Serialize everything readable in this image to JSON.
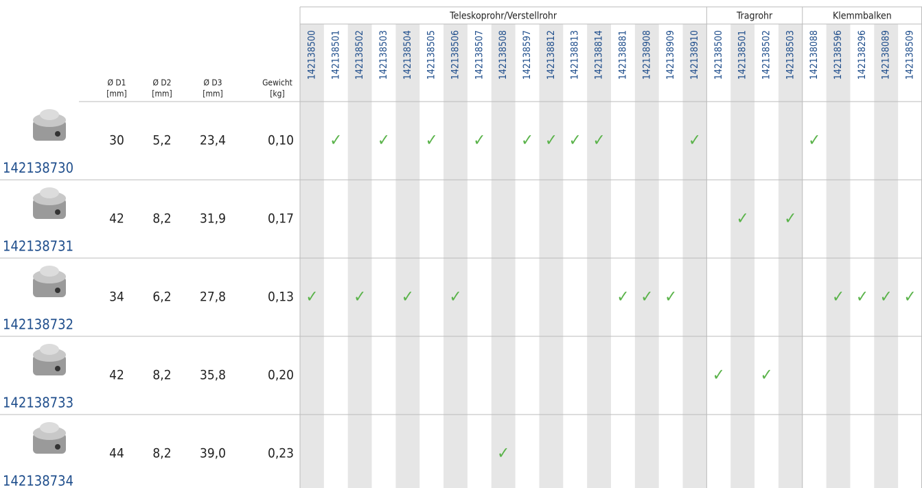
{
  "header": {
    "columns": [
      {
        "label": "Ø D1",
        "unit": "[mm]"
      },
      {
        "label": "Ø D2",
        "unit": "[mm]"
      },
      {
        "label": "Ø D3",
        "unit": "[mm]"
      },
      {
        "label": "Gewicht",
        "unit": "[kg]"
      }
    ],
    "groups": [
      {
        "label": "Teleskoprohr/Verstellrohr",
        "codes": [
          "142138500",
          "142138501",
          "142138502",
          "142138503",
          "142138504",
          "142138505",
          "142138506",
          "142138507",
          "142138508",
          "142138597",
          "142138812",
          "142138813",
          "142138814",
          "142138881",
          "142138908",
          "142138909",
          "142138910"
        ]
      },
      {
        "label": "Tragrohr",
        "codes": [
          "142138500",
          "142138501",
          "142138502",
          "142138503"
        ]
      },
      {
        "label": "Klemmbalken",
        "codes": [
          "142138088",
          "142138596",
          "142138296",
          "142138089",
          "142138509"
        ]
      }
    ]
  },
  "check_mark": "✓",
  "rows": [
    {
      "code": "142138730",
      "d1": "30",
      "d2": "5,2",
      "d3": "23,4",
      "weight": "0,10",
      "fits": [
        [
          false,
          true,
          false,
          true,
          false,
          true,
          false,
          true,
          false,
          true,
          true,
          true,
          true,
          false,
          false,
          false,
          true
        ],
        [
          false,
          false,
          false,
          false
        ],
        [
          true,
          false,
          false,
          false,
          false
        ]
      ]
    },
    {
      "code": "142138731",
      "d1": "42",
      "d2": "8,2",
      "d3": "31,9",
      "weight": "0,17",
      "fits": [
        [
          false,
          false,
          false,
          false,
          false,
          false,
          false,
          false,
          false,
          false,
          false,
          false,
          false,
          false,
          false,
          false,
          false
        ],
        [
          false,
          true,
          false,
          true
        ],
        [
          false,
          false,
          false,
          false,
          false
        ]
      ]
    },
    {
      "code": "142138732",
      "d1": "34",
      "d2": "6,2",
      "d3": "27,8",
      "weight": "0,13",
      "fits": [
        [
          true,
          false,
          true,
          false,
          true,
          false,
          true,
          false,
          false,
          false,
          false,
          false,
          false,
          true,
          true,
          true,
          false
        ],
        [
          false,
          false,
          false,
          false
        ],
        [
          false,
          true,
          true,
          true,
          true
        ]
      ]
    },
    {
      "code": "142138733",
      "d1": "42",
      "d2": "8,2",
      "d3": "35,8",
      "weight": "0,20",
      "fits": [
        [
          false,
          false,
          false,
          false,
          false,
          false,
          false,
          false,
          false,
          false,
          false,
          false,
          false,
          false,
          false,
          false,
          false
        ],
        [
          true,
          false,
          true,
          false
        ],
        [
          false,
          false,
          false,
          false,
          false
        ]
      ]
    },
    {
      "code": "142138734",
      "d1": "44",
      "d2": "8,2",
      "d3": "39,0",
      "weight": "0,23",
      "fits": [
        [
          false,
          false,
          false,
          false,
          false,
          false,
          false,
          false,
          true,
          false,
          false,
          false,
          false,
          false,
          false,
          false,
          false
        ],
        [
          false,
          false,
          false,
          false
        ],
        [
          false,
          false,
          false,
          false,
          false
        ]
      ]
    }
  ]
}
